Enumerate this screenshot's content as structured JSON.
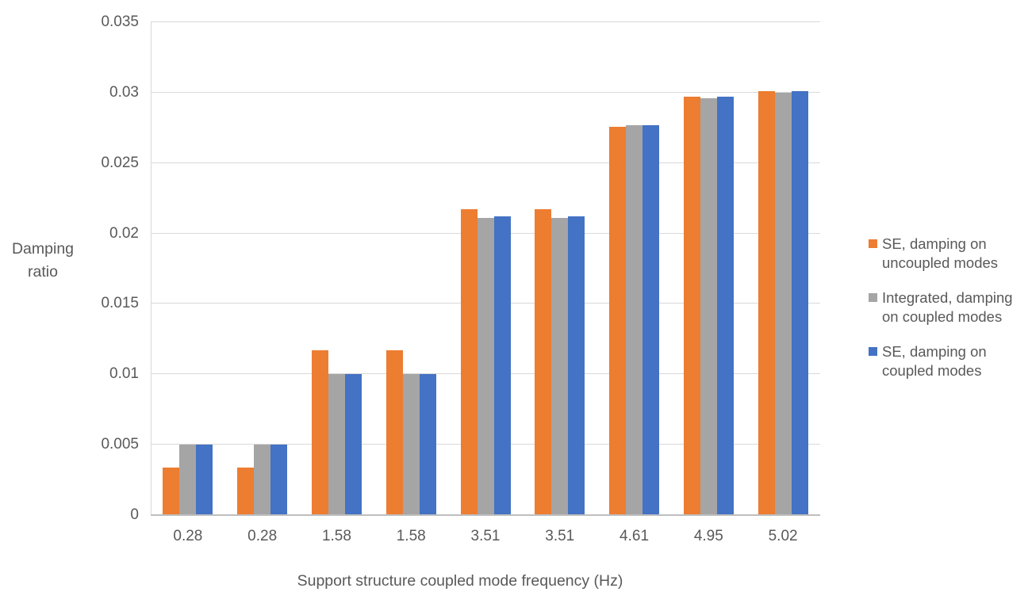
{
  "chart_data": {
    "type": "bar",
    "title": "",
    "xlabel": "Support structure coupled mode frequency (Hz)",
    "ylabel": "Damping ratio",
    "ylabel_lines": [
      "Damping",
      "ratio"
    ],
    "categories": [
      "0.28",
      "0.28",
      "1.58",
      "1.58",
      "3.51",
      "3.51",
      "4.61",
      "4.95",
      "5.02"
    ],
    "series": [
      {
        "name": "SE, damping on uncoupled modes",
        "color": "#ED7D31",
        "values": [
          0.0034,
          0.0034,
          0.0117,
          0.0117,
          0.0217,
          0.0217,
          0.0276,
          0.0297,
          0.0301
        ]
      },
      {
        "name": "Integrated, damping on coupled modes",
        "color": "#A5A5A5",
        "values": [
          0.005,
          0.005,
          0.01,
          0.01,
          0.0211,
          0.0211,
          0.0277,
          0.0296,
          0.03
        ]
      },
      {
        "name": "SE, damping on coupled modes",
        "color": "#4472C4",
        "values": [
          0.005,
          0.005,
          0.01,
          0.01,
          0.0212,
          0.0212,
          0.0277,
          0.0297,
          0.0301
        ]
      }
    ],
    "ylim": [
      0,
      0.035
    ],
    "ytick_interval": 0.005,
    "yticks": [
      {
        "value": 0.035,
        "label": "0.035"
      },
      {
        "value": 0.03,
        "label": "0.03"
      },
      {
        "value": 0.025,
        "label": "0.025"
      },
      {
        "value": 0.02,
        "label": "0.02"
      },
      {
        "value": 0.015,
        "label": "0.015"
      },
      {
        "value": 0.01,
        "label": "0.01"
      },
      {
        "value": 0.005,
        "label": "0.005"
      },
      {
        "value": 0,
        "label": "0"
      }
    ],
    "grid": true,
    "legend_position": "right"
  },
  "legend": {
    "items": [
      {
        "color": "#ED7D31",
        "label_lines": [
          "SE, damping on",
          "uncoupled modes"
        ]
      },
      {
        "color": "#A5A5A5",
        "label_lines": [
          "Integrated, damping",
          "on coupled modes"
        ]
      },
      {
        "color": "#4472C4",
        "label_lines": [
          "SE, damping on",
          "coupled modes"
        ]
      }
    ]
  },
  "colors": {
    "gridline": "#D9D9D9",
    "axis_line": "#BFBFBF",
    "text": "#595959"
  }
}
